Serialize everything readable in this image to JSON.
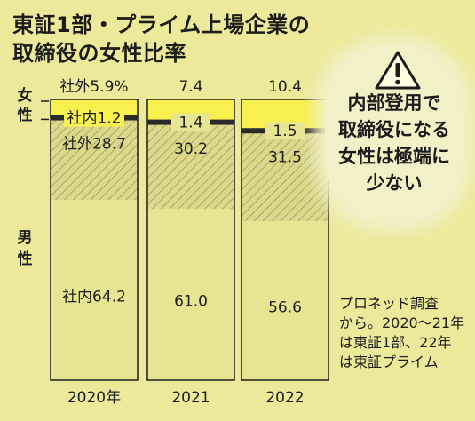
{
  "title_line1": "東証1部・プライム上場企業の",
  "title_line2": "取締役の女性比率",
  "chart_data": {
    "type": "bar",
    "stacked": true,
    "categories": [
      "2020年",
      "2021",
      "2022"
    ],
    "series": [
      {
        "name": "男性・社内",
        "values": [
          64.2,
          61.0,
          56.6
        ],
        "labels": [
          "社内64.2",
          "61.0",
          "56.6"
        ],
        "color": "#e8e592"
      },
      {
        "name": "男性・社外",
        "values": [
          28.7,
          30.2,
          31.5
        ],
        "labels": [
          "社外28.7",
          "30.2",
          "31.5"
        ],
        "color": "#dcd98a"
      },
      {
        "name": "女性・社内",
        "values": [
          1.2,
          1.4,
          1.5
        ],
        "labels": [
          "社内1.2",
          "1.4",
          "1.5"
        ],
        "color": "#e6e05a"
      },
      {
        "name": "女性・社外",
        "values": [
          5.9,
          7.4,
          10.4
        ],
        "labels": [
          "社外5.9%",
          "7.4",
          "10.4"
        ],
        "color": "#f7f04e"
      }
    ],
    "group_labels": {
      "female": "女性",
      "male": "男性"
    },
    "ylim": [
      0,
      100
    ]
  },
  "callout": {
    "icon": "warning-icon",
    "lines": [
      "内部登用で",
      "取締役になる",
      "女性は極端に",
      "少ない"
    ]
  },
  "source_note": [
    "プロネッド調査",
    "から。2020〜21年",
    "は東証1部、22年",
    "は東証プライム"
  ]
}
